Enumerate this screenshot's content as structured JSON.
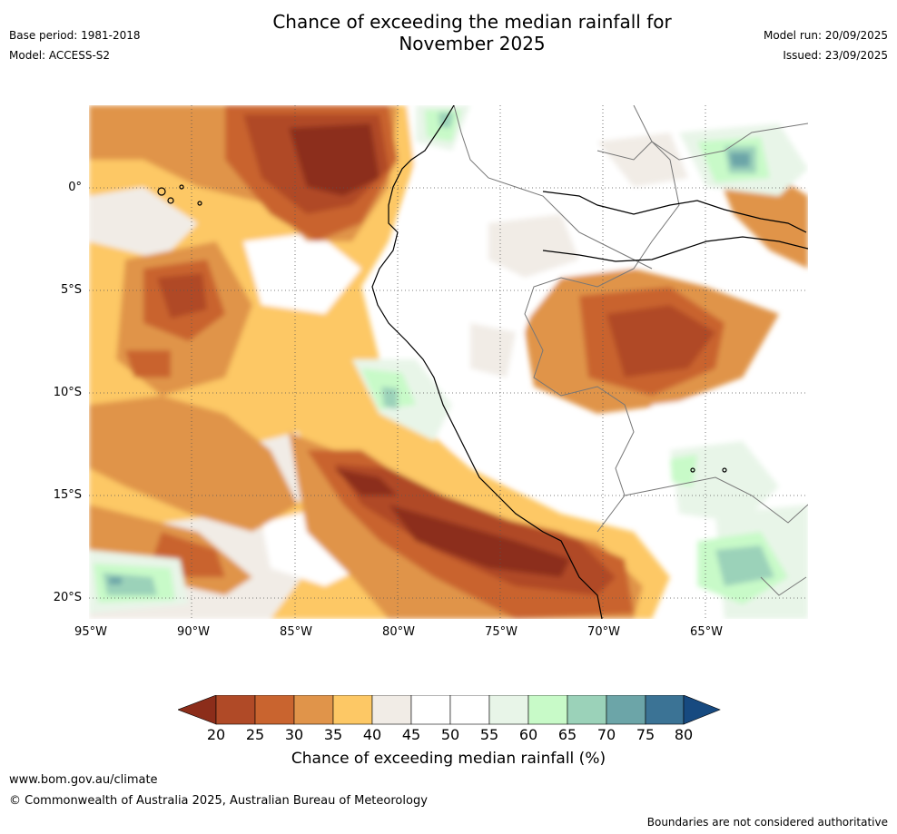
{
  "header": {
    "title_line1": "Chance of exceeding the median rainfall for",
    "title_line2": "November 2025",
    "base_period": "Base period: 1981-2018",
    "model": "Model: ACCESS-S2",
    "model_run": "Model run: 20/09/2025",
    "issued": "Issued: 23/09/2025"
  },
  "axes": {
    "lat_labels": [
      "0°",
      "5°S",
      "10°S",
      "15°S",
      "20°S"
    ],
    "lon_labels": [
      "95°W",
      "90°W",
      "85°W",
      "80°W",
      "75°W",
      "70°W",
      "65°W"
    ]
  },
  "legend": {
    "ticks": [
      "20",
      "25",
      "30",
      "35",
      "40",
      "45",
      "50",
      "55",
      "60",
      "65",
      "70",
      "75",
      "80"
    ],
    "colors": [
      "#8c2d1a",
      "#b04a27",
      "#c9642f",
      "#e0944a",
      "#fdc865",
      "#f1ece6",
      "#ffffff",
      "#ffffff",
      "#e8f5e8",
      "#c8fac8",
      "#9bd2b9",
      "#6ca5a8",
      "#3b7395",
      "#174a80"
    ],
    "label": "Chance of exceeding median rainfall (%)"
  },
  "footer": {
    "url": "www.bom.gov.au/climate",
    "copyright": "© Commonwealth of Australia 2025, Australian Bureau of Meteorology",
    "disclaimer": "Boundaries are not considered authoritative"
  }
}
